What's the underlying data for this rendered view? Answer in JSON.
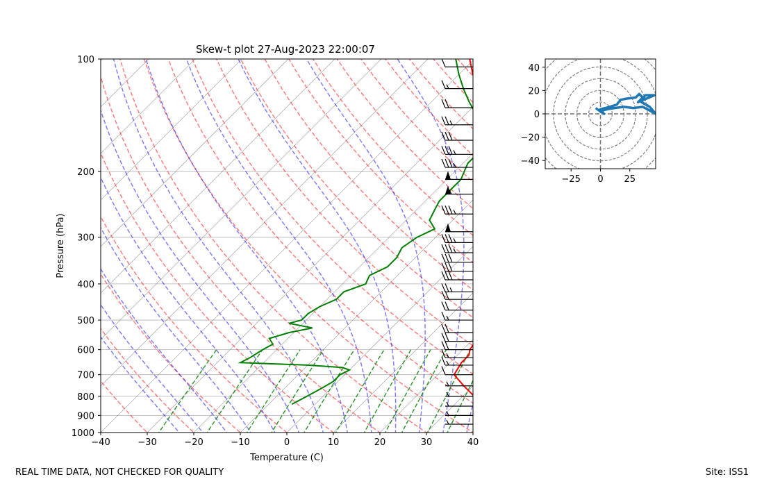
{
  "footer": {
    "left": "REAL TIME DATA, NOT CHECKED FOR QUALITY",
    "right": "Site: ISS1"
  },
  "colors": {
    "temperature": "#ff0000",
    "dewpoint": "#008000",
    "dry_adiabat": "#ff0000",
    "moist_adiabat": "#0000ff",
    "mixing_ratio": "#008000",
    "isotherm": "#808080",
    "hodograph": "#1f77b4"
  },
  "chart_data": [
    {
      "type": "line",
      "title": "Skew-t plot 27-Aug-2023 22:00:07",
      "xlabel": "Temperature (C)",
      "ylabel": "Pressure (hPa)",
      "xlim": [
        -40,
        40
      ],
      "ylim": [
        1000,
        100
      ],
      "y_scale": "log",
      "x_ticks": [
        "−40",
        "−30",
        "−20",
        "−10",
        "0",
        "10",
        "20",
        "30",
        "40"
      ],
      "y_ticks": [
        "1000",
        "900",
        "800",
        "700",
        "600",
        "500",
        "400",
        "300",
        "200",
        "100"
      ],
      "grid": true,
      "series": [
        {
          "role": "temperature",
          "pressure": [
            840,
            800,
            750,
            700,
            650,
            620,
            600,
            570,
            550,
            520,
            500,
            470,
            450,
            420,
            400,
            380,
            360,
            340,
            320,
            300,
            290,
            270,
            250,
            230,
            210,
            200,
            185,
            170,
            155,
            140,
            130,
            120,
            110,
            100
          ],
          "temp": [
            35.5,
            32.5,
            28.0,
            23.5,
            22.5,
            22.5,
            21.5,
            21.0,
            20.5,
            19.5,
            18.0,
            16.0,
            15.0,
            14.5,
            13.0,
            12.0,
            10.5,
            9.0,
            8.0,
            7.0,
            7.5,
            6.0,
            6.0,
            1.0,
            -2.0,
            -4.0,
            -9.0,
            -14.0,
            -19.0,
            -24.0,
            -28.0,
            -32.0,
            -37.0,
            -41.0
          ]
        },
        {
          "role": "dewpoint",
          "pressure": [
            840,
            800,
            760,
            730,
            700,
            680,
            670,
            660,
            650,
            630,
            600,
            580,
            560,
            540,
            525,
            510,
            500,
            480,
            460,
            440,
            420,
            400,
            380,
            360,
            340,
            320,
            300,
            285,
            270,
            255,
            240,
            225,
            210,
            200,
            190,
            180,
            170,
            160,
            150,
            140,
            130,
            120,
            110,
            100
          ],
          "temp": [
            -5.0,
            -3.5,
            -2.0,
            -1.0,
            -1.0,
            0.0,
            -2.0,
            -10.0,
            -25.0,
            -24.0,
            -23.0,
            -22.0,
            -24.0,
            -21.0,
            -17.0,
            -23.0,
            -21.0,
            -21.0,
            -20.0,
            -18.0,
            -18.0,
            -15.0,
            -16.0,
            -14.0,
            -14.0,
            -15.0,
            -14.0,
            -12.0,
            -15.0,
            -16.0,
            -17.0,
            -17.0,
            -17.0,
            -18.0,
            -19.0,
            -19.0,
            -17.0,
            -19.0,
            -22.0,
            -28.0,
            -32.0,
            -36.0,
            -40.0,
            -44.0
          ]
        }
      ],
      "wind_barbs": [
        {
          "p": 950,
          "speed": 5
        },
        {
          "p": 900,
          "speed": 5
        },
        {
          "p": 850,
          "speed": 5
        },
        {
          "p": 800,
          "speed": 5
        },
        {
          "p": 750,
          "speed": 5
        },
        {
          "p": 700,
          "speed": 10
        },
        {
          "p": 660,
          "speed": 15
        },
        {
          "p": 630,
          "speed": 15
        },
        {
          "p": 600,
          "speed": 20
        },
        {
          "p": 570,
          "speed": 20
        },
        {
          "p": 540,
          "speed": 20
        },
        {
          "p": 500,
          "speed": 15
        },
        {
          "p": 470,
          "speed": 20
        },
        {
          "p": 440,
          "speed": 20
        },
        {
          "p": 420,
          "speed": 25
        },
        {
          "p": 390,
          "speed": 30
        },
        {
          "p": 370,
          "speed": 30
        },
        {
          "p": 350,
          "speed": 30
        },
        {
          "p": 330,
          "speed": 35
        },
        {
          "p": 310,
          "speed": 35
        },
        {
          "p": 290,
          "speed": 50
        },
        {
          "p": 260,
          "speed": 35
        },
        {
          "p": 230,
          "speed": 55
        },
        {
          "p": 210,
          "speed": 50
        },
        {
          "p": 195,
          "speed": 35
        },
        {
          "p": 180,
          "speed": 35
        },
        {
          "p": 165,
          "speed": 30
        },
        {
          "p": 150,
          "speed": 25
        },
        {
          "p": 135,
          "speed": 20
        },
        {
          "p": 120,
          "speed": 15
        },
        {
          "p": 105,
          "speed": 10
        }
      ]
    },
    {
      "type": "line",
      "title": "",
      "xlabel": "",
      "ylabel": "",
      "xlim": [
        -47,
        47
      ],
      "ylim": [
        -47,
        47
      ],
      "x_ticks": [
        "−25",
        "0",
        "25"
      ],
      "y_ticks": [
        "40",
        "20",
        "0",
        "−20",
        "−40"
      ],
      "grid": false,
      "rings": [
        10,
        20,
        30,
        40,
        50,
        60
      ],
      "x": [
        -4,
        0,
        3,
        0,
        8,
        14,
        17,
        22,
        30,
        33,
        36,
        32,
        46,
        38,
        35,
        42,
        47,
        40,
        36,
        28,
        20,
        12,
        6,
        2,
        0
      ],
      "y": [
        5,
        2,
        0,
        4,
        6,
        8,
        12,
        13,
        14,
        17,
        14,
        10,
        16,
        16,
        10,
        6,
        0,
        4,
        6,
        5,
        6,
        5,
        4,
        3,
        1
      ]
    }
  ]
}
